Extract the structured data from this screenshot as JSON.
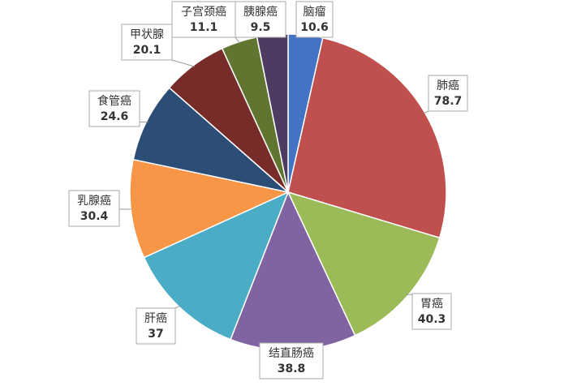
{
  "chart_data": {
    "type": "pie",
    "categories": [
      "脑瘤",
      "肺癌",
      "胃癌",
      "结直肠癌",
      "肝癌",
      "乳腺癌",
      "食管癌",
      "甲状腺",
      "子宫颈癌",
      "胰腺癌"
    ],
    "values": [
      10.6,
      78.7,
      40.3,
      38.8,
      37,
      30.4,
      24.6,
      20.1,
      11.1,
      9.5
    ],
    "colors": [
      "#4472c4",
      "#c0504d",
      "#9bbb59",
      "#8064a2",
      "#4bacc6",
      "#f79646",
      "#2c4d75",
      "#772c2a",
      "#5f7530",
      "#4d3b62"
    ]
  }
}
